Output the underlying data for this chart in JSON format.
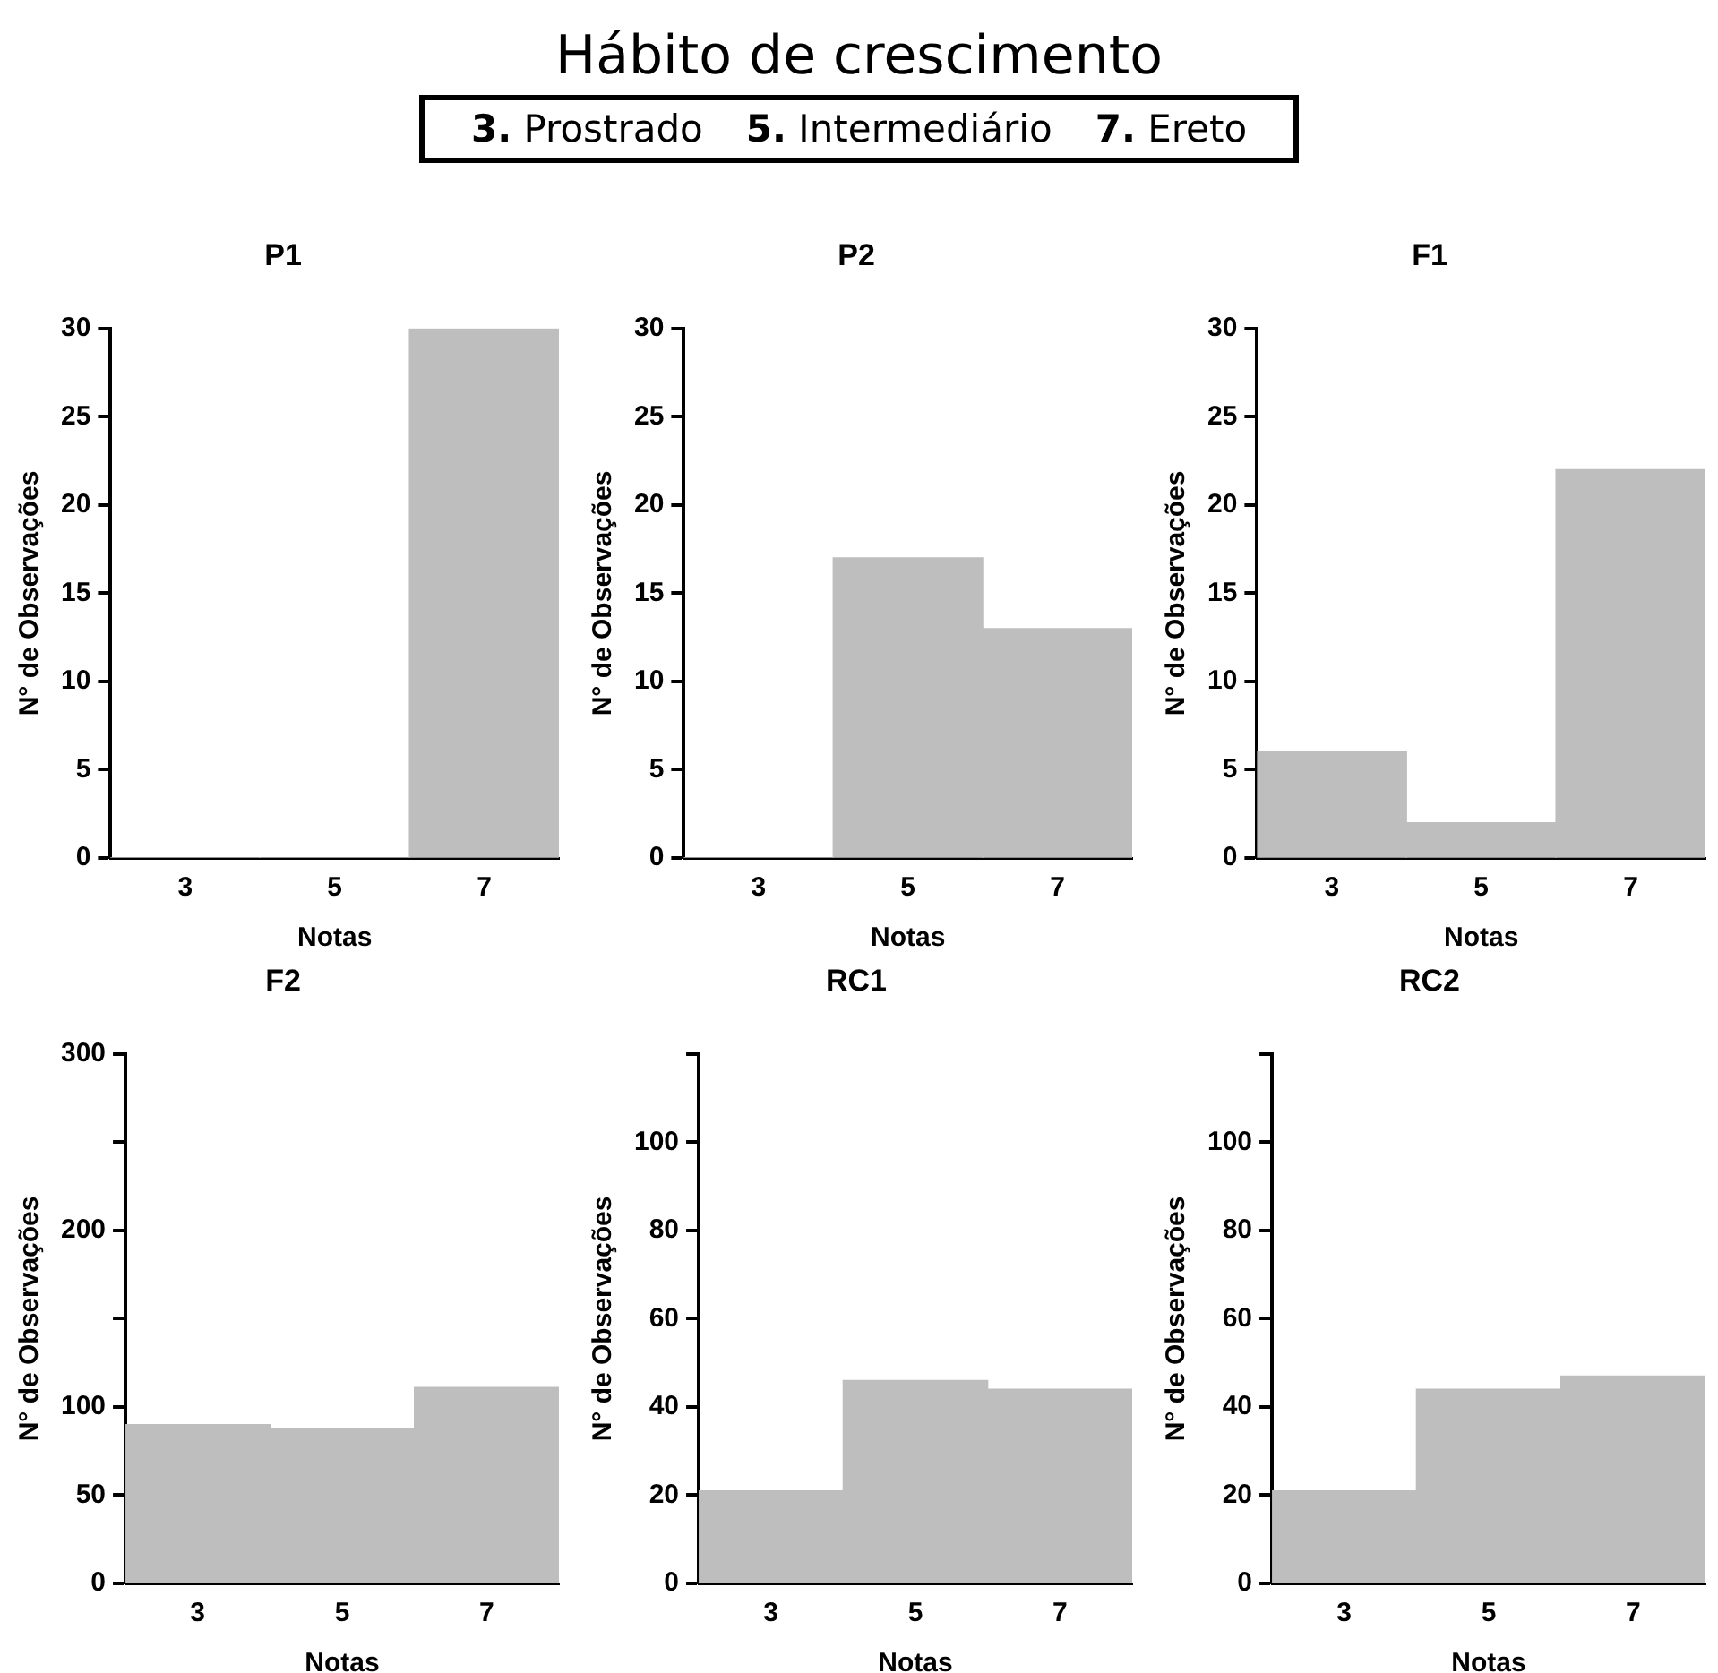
{
  "chart_data": [
    {
      "type": "other",
      "title": "Hábito de crescimento",
      "annotations": [
        "3. Prostrado",
        "5. Intermediário",
        "7. Ereto"
      ]
    },
    {
      "type": "histogram",
      "title": "P1",
      "xlabel": "Notas",
      "ylabel": "N° de Observações",
      "bins": [
        2,
        4,
        6,
        8
      ],
      "values": [
        0,
        0,
        30
      ],
      "color": "#bebebe",
      "xlim": [
        2,
        8
      ],
      "xticks": [
        3,
        5,
        7
      ],
      "ylim": [
        0,
        30
      ],
      "yticks": [
        0,
        5,
        10,
        15,
        20,
        25,
        30
      ]
    },
    {
      "type": "histogram",
      "title": "P2",
      "xlabel": "Notas",
      "ylabel": "N° de Observações",
      "bins": [
        2,
        4,
        6,
        8
      ],
      "values": [
        0,
        17,
        13
      ],
      "color": "#bebebe",
      "xlim": [
        2,
        8
      ],
      "xticks": [
        3,
        5,
        7
      ],
      "ylim": [
        0,
        30
      ],
      "yticks": [
        0,
        5,
        10,
        15,
        20,
        25,
        30
      ]
    },
    {
      "type": "histogram",
      "title": "F1",
      "xlabel": "Notas",
      "ylabel": "N° de Observações",
      "bins": [
        2,
        4,
        6,
        8
      ],
      "values": [
        6,
        2,
        22
      ],
      "color": "#bebebe",
      "xlim": [
        2,
        8
      ],
      "xticks": [
        3,
        5,
        7
      ],
      "ylim": [
        0,
        30
      ],
      "yticks": [
        0,
        5,
        10,
        15,
        20,
        25,
        30
      ]
    },
    {
      "type": "histogram",
      "title": "F2",
      "xlabel": "Notas",
      "ylabel": "N° de Observações",
      "bins": [
        2,
        4,
        6,
        8
      ],
      "values": [
        90,
        88,
        111
      ],
      "color": "#bebebe",
      "xlim": [
        2,
        8
      ],
      "xticks": [
        3,
        5,
        7
      ],
      "ylim": [
        0,
        300
      ],
      "yticks": [
        0,
        50,
        100,
        {
          "value": 150,
          "label": null
        },
        200,
        {
          "value": 250,
          "label": null
        },
        300
      ]
    },
    {
      "type": "histogram",
      "title": "RC1",
      "xlabel": "Notas",
      "ylabel": "N° de Observações",
      "bins": [
        2,
        4,
        6,
        8
      ],
      "values": [
        21,
        46,
        44
      ],
      "color": "#bebebe",
      "xlim": [
        2,
        8
      ],
      "xticks": [
        3,
        5,
        7
      ],
      "ylim": [
        0,
        120
      ],
      "yticks": [
        0,
        20,
        40,
        60,
        80,
        100,
        {
          "value": 120,
          "label": null
        }
      ]
    },
    {
      "type": "histogram",
      "title": "RC2",
      "xlabel": "Notas",
      "ylabel": "N° de Observações",
      "bins": [
        2,
        4,
        6,
        8
      ],
      "values": [
        21,
        44,
        47
      ],
      "color": "#bebebe",
      "xlim": [
        2,
        8
      ],
      "xticks": [
        3,
        5,
        7
      ],
      "ylim": [
        0,
        120
      ],
      "yticks": [
        0,
        20,
        40,
        60,
        80,
        100,
        {
          "value": 120,
          "label": null
        }
      ]
    }
  ]
}
